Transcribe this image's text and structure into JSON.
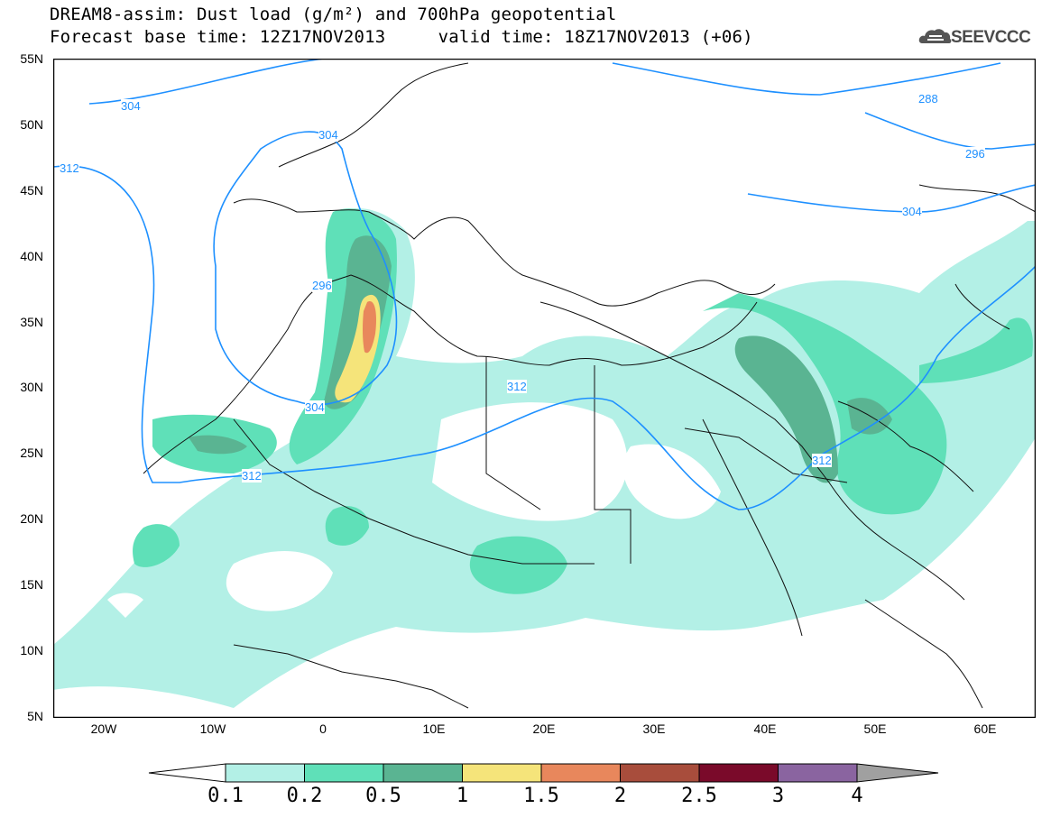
{
  "title": {
    "line1": "DREAM8-assim: Dust load (g/m²) and 700hPa geopotential",
    "line2": "Forecast base time: 12Z17NOV2013     valid time: 18Z17NOV2013 (+06)"
  },
  "logo": {
    "text": "SEEVCCC",
    "icon": "cloud-icon"
  },
  "axes": {
    "lat_labels": [
      "55N",
      "50N",
      "45N",
      "40N",
      "35N",
      "30N",
      "25N",
      "20N",
      "15N",
      "10N",
      "5N"
    ],
    "lon_labels": [
      "20W",
      "10W",
      "0",
      "10E",
      "20E",
      "30E",
      "40E",
      "50E",
      "60E"
    ]
  },
  "contours": {
    "color": "#1e90ff",
    "labels": [
      "304",
      "304",
      "312",
      "296",
      "304",
      "312",
      "312",
      "288",
      "296",
      "304",
      "312"
    ]
  },
  "colorbar": {
    "levels": [
      "0.1",
      "0.2",
      "0.5",
      "1",
      "1.5",
      "2",
      "2.5",
      "3",
      "4"
    ],
    "colors": [
      "#ffffff",
      "#b3f0e6",
      "#5fe0b8",
      "#5ab492",
      "#f5e47a",
      "#e8875c",
      "#a84d3c",
      "#7a0a2a",
      "#8a64a0",
      "#a0a0a0"
    ]
  }
}
